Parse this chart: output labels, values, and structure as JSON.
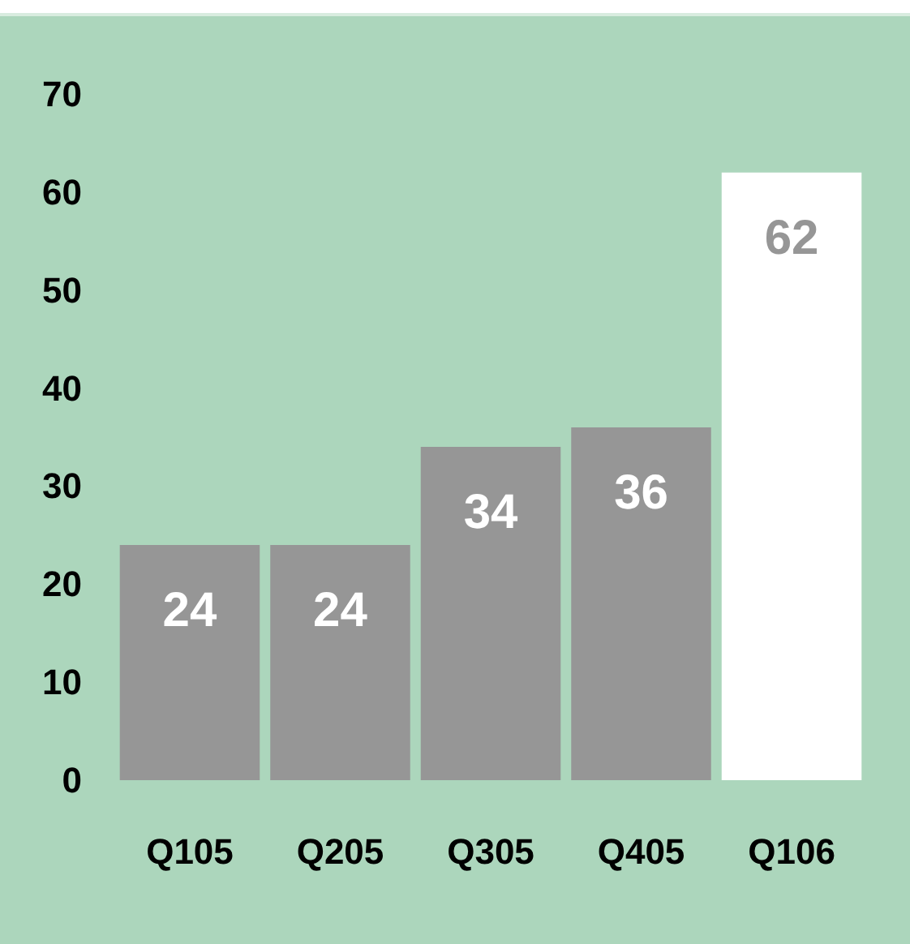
{
  "chart_data": {
    "type": "bar",
    "categories": [
      "Q105",
      "Q205",
      "Q305",
      "Q405",
      "Q106"
    ],
    "values": [
      24,
      24,
      34,
      36,
      62
    ],
    "colors": [
      "#969696",
      "#969696",
      "#969696",
      "#969696",
      "#ffffff"
    ],
    "ylim": [
      0,
      70
    ],
    "yticks": [
      0,
      10,
      20,
      30,
      40,
      50,
      60,
      70
    ],
    "grid": false,
    "data_labels": true
  }
}
